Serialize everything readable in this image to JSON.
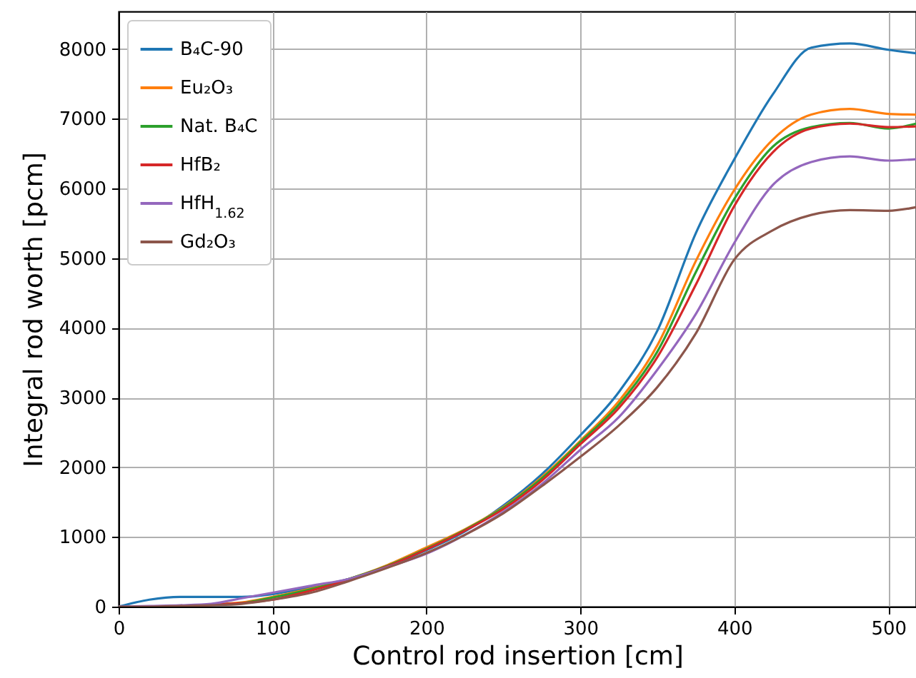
{
  "chart_data": {
    "type": "line",
    "xlabel": "Control rod insertion [cm]",
    "ylabel": "Integral rod worth [pcm]",
    "xlim": [
      0,
      518
    ],
    "ylim": [
      0,
      8540
    ],
    "xticks": [
      0,
      100,
      200,
      300,
      400,
      500
    ],
    "yticks": [
      0,
      1000,
      2000,
      3000,
      4000,
      5000,
      6000,
      7000,
      8000
    ],
    "grid": true,
    "legend": "top left",
    "x": [
      0,
      20,
      40,
      60,
      80,
      100,
      125,
      150,
      175,
      200,
      225,
      250,
      275,
      300,
      325,
      350,
      375,
      400,
      425,
      450,
      475,
      500,
      518
    ],
    "series": [
      {
        "name": "B₄C-90",
        "color": "#1f77b4",
        "values": [
          0,
          100,
          140,
          140,
          140,
          180,
          280,
          400,
          580,
          810,
          1080,
          1450,
          1900,
          2460,
          3080,
          3960,
          5360,
          6420,
          7350,
          8020,
          8080,
          7990,
          7940
        ]
      },
      {
        "name": "Eu₂O₃",
        "color": "#ff7f0e",
        "values": [
          null,
          null,
          null,
          30,
          60,
          140,
          260,
          400,
          600,
          850,
          1110,
          1430,
          1860,
          2380,
          2950,
          3750,
          4960,
          5980,
          6700,
          7060,
          7140,
          7070,
          7060
        ]
      },
      {
        "name": "Nat. B₄C",
        "color": "#2ca02c",
        "values": [
          null,
          null,
          null,
          30,
          50,
          130,
          250,
          400,
          590,
          830,
          1100,
          1420,
          1840,
          2360,
          2900,
          3660,
          4800,
          5850,
          6600,
          6880,
          6940,
          6860,
          6930
        ]
      },
      {
        "name": "HfB₂",
        "color": "#d62728",
        "values": [
          null,
          null,
          null,
          30,
          50,
          100,
          230,
          390,
          580,
          820,
          1090,
          1400,
          1810,
          2330,
          2850,
          3580,
          4620,
          5750,
          6520,
          6860,
          6930,
          6880,
          6890
        ]
      },
      {
        "name": "HfH$_{1.62}$",
        "color": "#9467bd",
        "values": [
          0,
          10,
          20,
          40,
          120,
          200,
          300,
          400,
          570,
          760,
          1030,
          1360,
          1760,
          2250,
          2720,
          3400,
          4200,
          5220,
          6050,
          6380,
          6460,
          6400,
          6420
        ]
      },
      {
        "name": "Gd₂O₃",
        "color": "#8c564b",
        "values": [
          0,
          0,
          10,
          20,
          40,
          100,
          200,
          370,
          560,
          770,
          1030,
          1340,
          1730,
          2150,
          2600,
          3150,
          3920,
          4980,
          5400,
          5620,
          5690,
          5680,
          5730
        ]
      }
    ]
  }
}
